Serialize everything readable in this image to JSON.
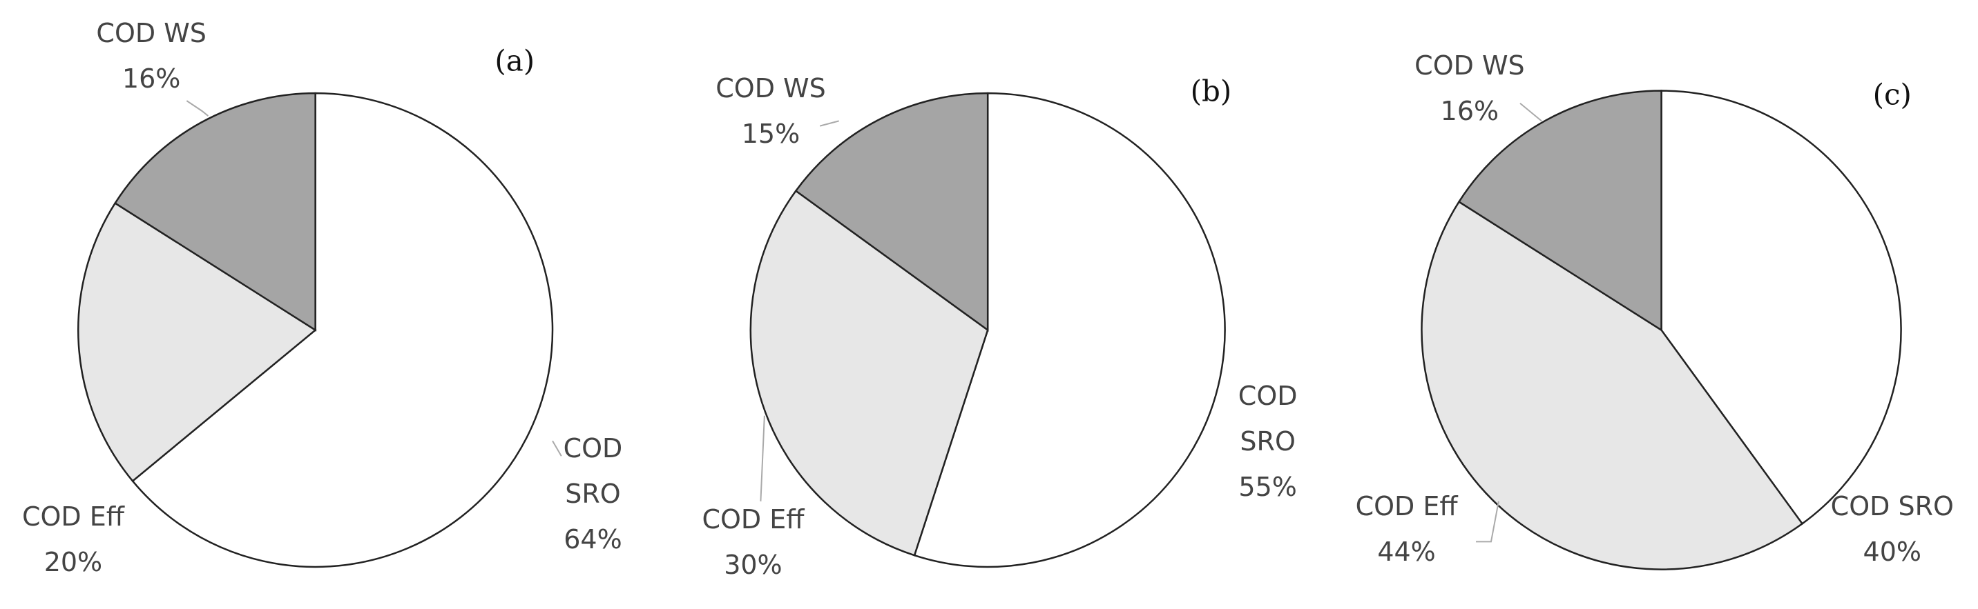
{
  "chart_data": [
    {
      "type": "pie",
      "title": "(a)",
      "categories": [
        "COD SRO",
        "COD Eff",
        "COD WS"
      ],
      "values": [
        64,
        20,
        16
      ],
      "value_labels": [
        "64%",
        "20%",
        "16%"
      ],
      "colors": [
        "#ffffff",
        "#e7e7e7",
        "#a5a5a5"
      ]
    },
    {
      "type": "pie",
      "title": "(b)",
      "categories": [
        "COD SRO",
        "COD Eff",
        "COD WS"
      ],
      "values": [
        55,
        30,
        15
      ],
      "value_labels": [
        "55%",
        "30%",
        "15%"
      ],
      "colors": [
        "#ffffff",
        "#e7e7e7",
        "#a5a5a5"
      ]
    },
    {
      "type": "pie",
      "title": "(c)",
      "categories": [
        "COD SRO",
        "COD Eff",
        "COD WS"
      ],
      "values": [
        40,
        44,
        16
      ],
      "value_labels": [
        "40%",
        "44%",
        "16%"
      ],
      "colors": [
        "#ffffff",
        "#e7e7e7",
        "#a5a5a5"
      ]
    }
  ]
}
